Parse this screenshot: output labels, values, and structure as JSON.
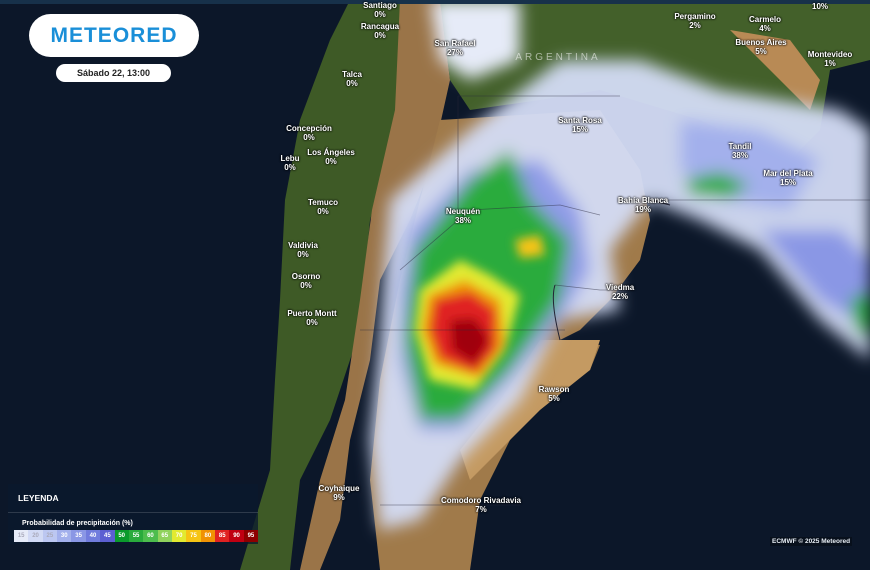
{
  "header": {
    "logo": "METEORED",
    "datetime": "Sábado 22, 13:00"
  },
  "map": {
    "country_label": "ARGENTINA",
    "cities": [
      {
        "name": "Santiago",
        "value": "0%"
      },
      {
        "name": "Rancagua",
        "value": "0%"
      },
      {
        "name": "San Rafael",
        "value": "27%"
      },
      {
        "name": "Talca",
        "value": "0%"
      },
      {
        "name": "Concepción",
        "value": "0%"
      },
      {
        "name": "Lebu",
        "value": "0%"
      },
      {
        "name": "Los Ángeles",
        "value": "0%"
      },
      {
        "name": "Temuco",
        "value": "0%"
      },
      {
        "name": "Valdivia",
        "value": "0%"
      },
      {
        "name": "Osorno",
        "value": "0%"
      },
      {
        "name": "Puerto Montt",
        "value": "0%"
      },
      {
        "name": "Neuquén",
        "value": "38%"
      },
      {
        "name": "Santa Rosa",
        "value": "15%"
      },
      {
        "name": "Pergamino",
        "value": "2%"
      },
      {
        "name": "Carmelo",
        "value": "4%"
      },
      {
        "name": "Buenos Aires",
        "value": "5%"
      },
      {
        "name": "Montevideo",
        "value": "1%"
      },
      {
        "name": "Tandil",
        "value": "38%"
      },
      {
        "name": "Mar del Plata",
        "value": "15%"
      },
      {
        "name": "Bahía Blanca",
        "value": "19%"
      },
      {
        "name": "Viedma",
        "value": "22%"
      },
      {
        "name": "Rawson",
        "value": "5%"
      },
      {
        "name": "Coyhaique",
        "value": "9%"
      },
      {
        "name": "Comodoro Rivadavia",
        "value": "7%"
      },
      {
        "name": "",
        "value": "10%"
      }
    ]
  },
  "legend": {
    "title": "LEYENDA",
    "subtitle": "Probabilidad de precipitación (%)",
    "steps": [
      {
        "label": "15",
        "color": "#e6ebf8"
      },
      {
        "label": "20",
        "color": "#d2daf5"
      },
      {
        "label": "25",
        "color": "#bcc7f1"
      },
      {
        "label": "30",
        "color": "#a3b0ec"
      },
      {
        "label": "35",
        "color": "#8a97e5"
      },
      {
        "label": "40",
        "color": "#717cdd"
      },
      {
        "label": "45",
        "color": "#5c5fd2"
      },
      {
        "label": "50",
        "color": "#0b9a2c"
      },
      {
        "label": "55",
        "color": "#2aab3c"
      },
      {
        "label": "60",
        "color": "#4dbd4d"
      },
      {
        "label": "65",
        "color": "#90d25c"
      },
      {
        "label": "70",
        "color": "#e2ea30"
      },
      {
        "label": "75",
        "color": "#f6c414"
      },
      {
        "label": "80",
        "color": "#f09204"
      },
      {
        "label": "85",
        "color": "#e02222"
      },
      {
        "label": "90",
        "color": "#c00012"
      },
      {
        "label": "95",
        "color": "#8e0000"
      }
    ]
  },
  "credit": "ECMWF © 2025 Meteored"
}
